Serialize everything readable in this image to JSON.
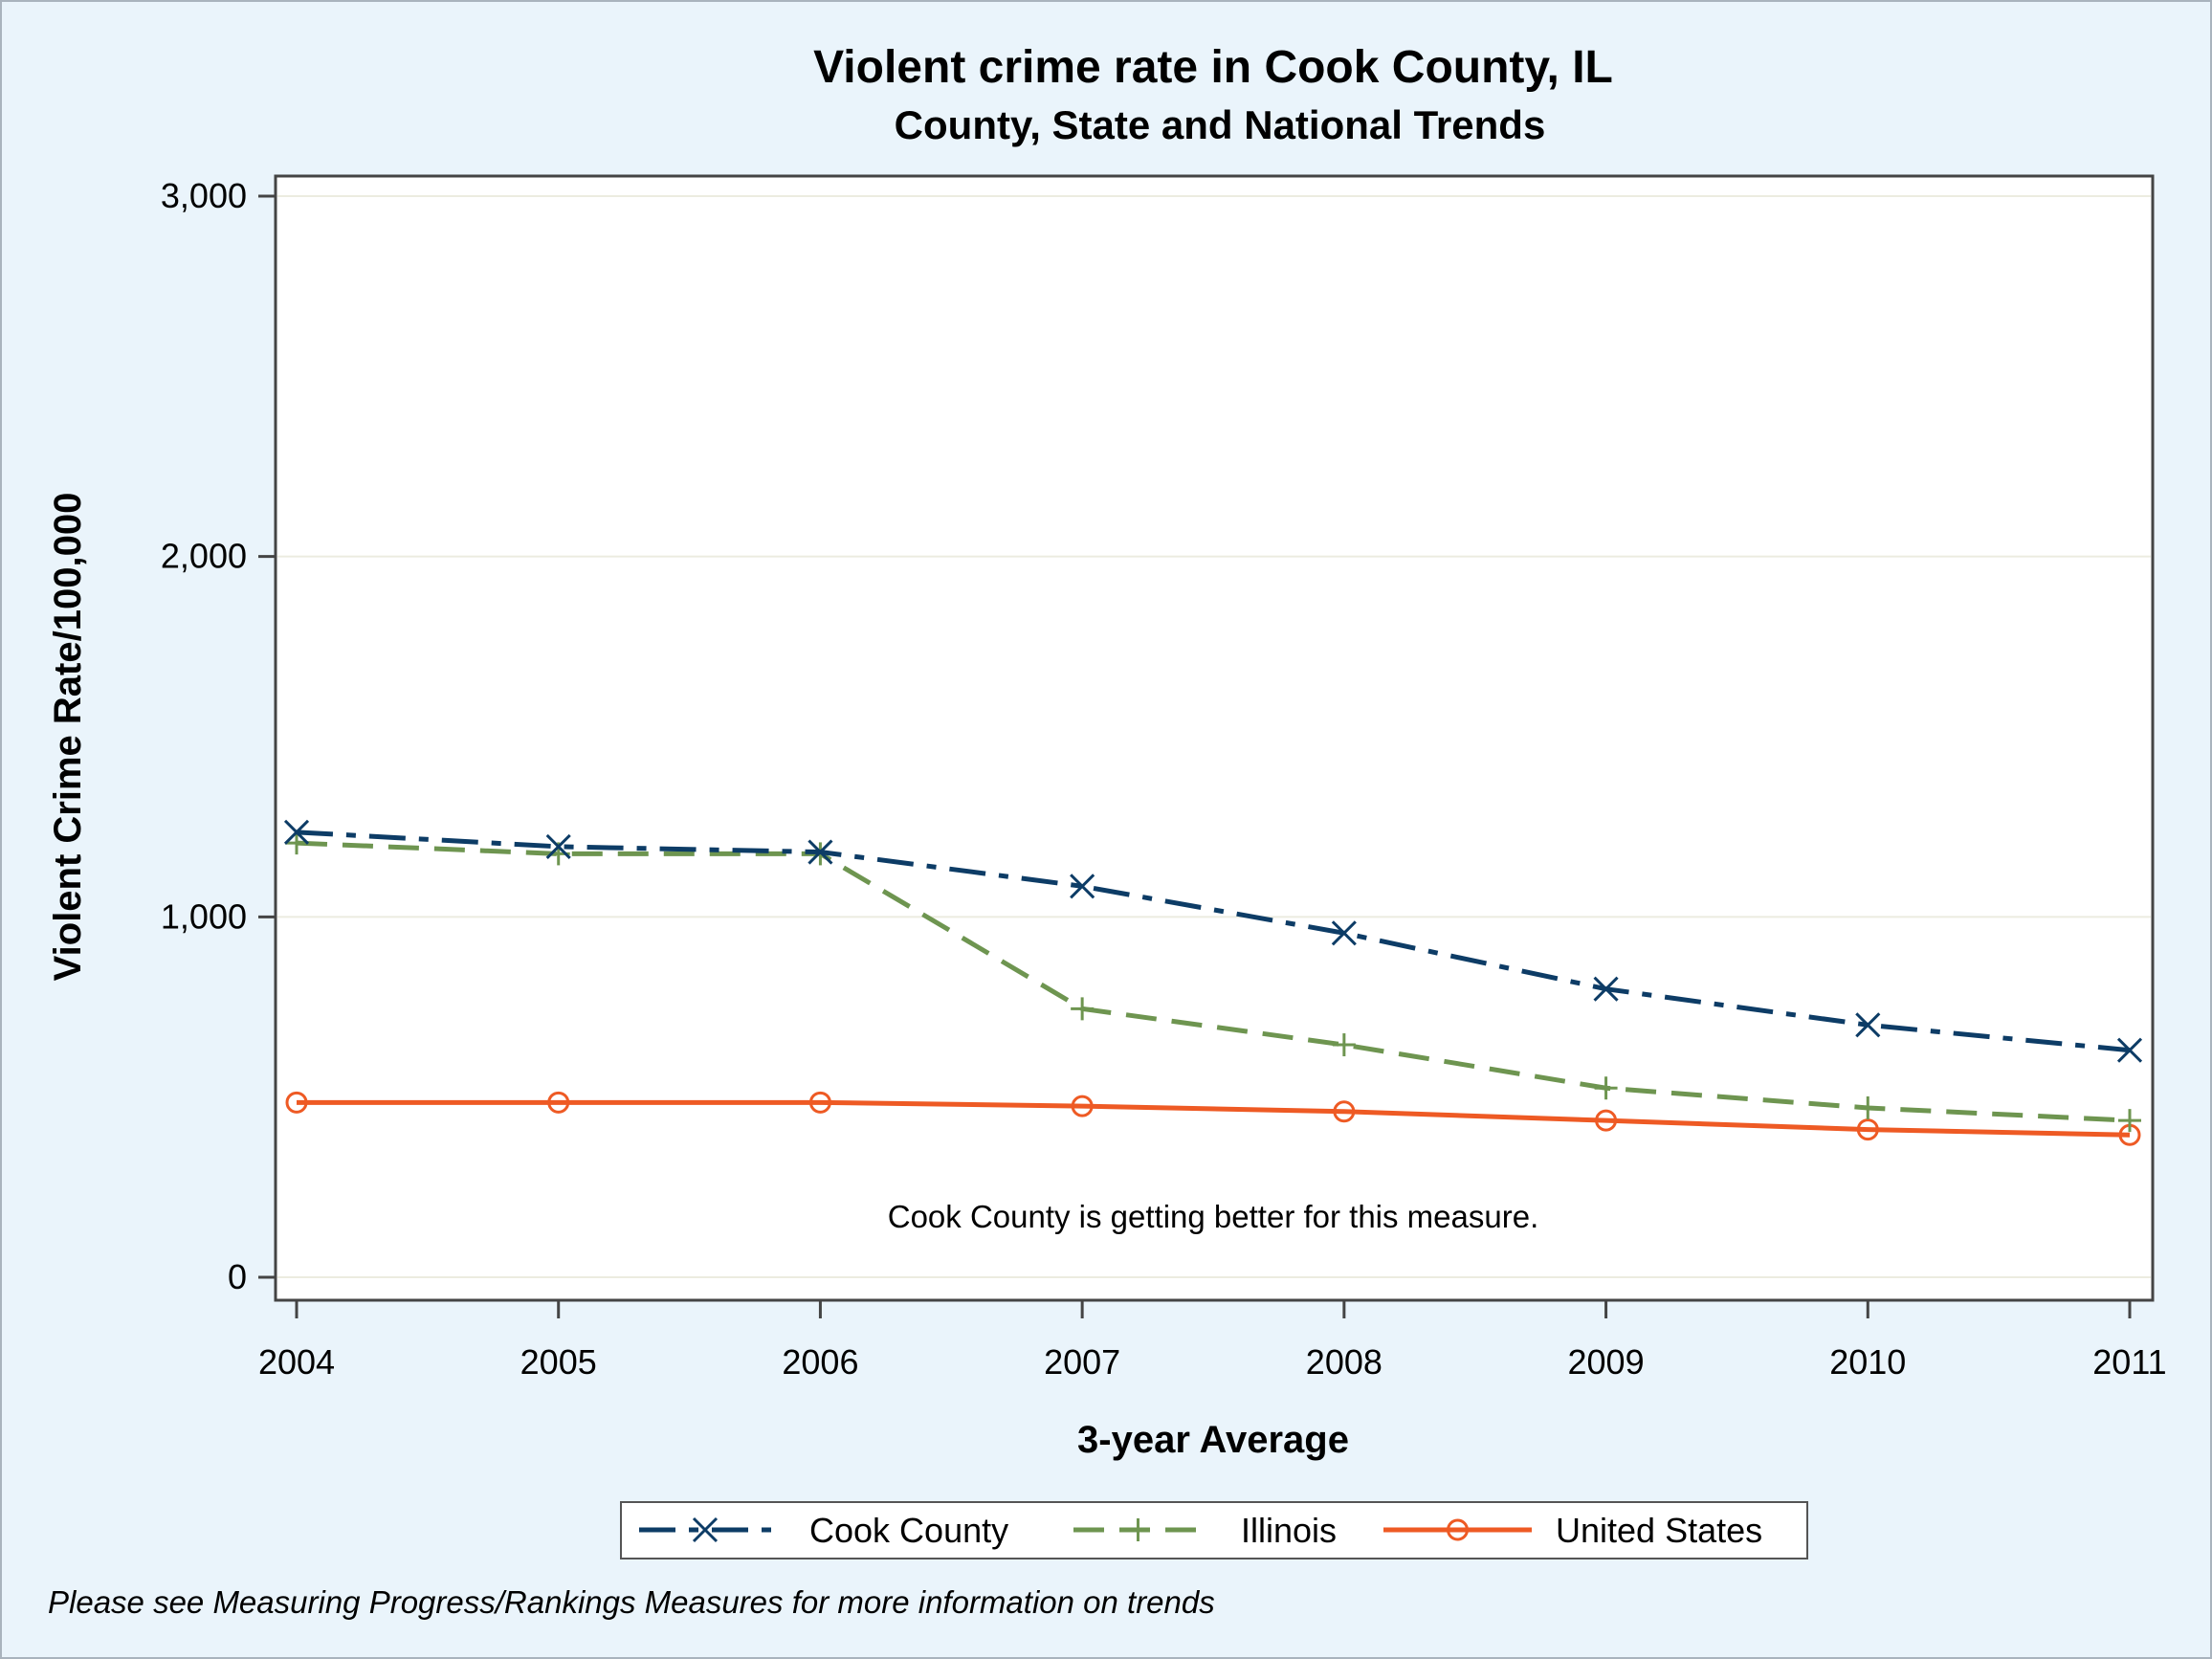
{
  "chart_data": {
    "type": "line",
    "title": "Violent crime rate in Cook County, IL",
    "subtitle": "County, State and National Trends",
    "xlabel": "3-year Average",
    "ylabel": "Violent Crime Rate/100,000",
    "x": [
      "2004",
      "2005",
      "2006",
      "2007",
      "2008",
      "2009",
      "2010",
      "2011"
    ],
    "ylim": [
      0,
      3000
    ],
    "yticks": [
      0,
      1000,
      2000,
      3000
    ],
    "ytick_labels": [
      "0",
      "1,000",
      "2,000",
      "3,000"
    ],
    "grid": true,
    "legend_position": "bottom",
    "series": [
      {
        "name": "Cook County",
        "values": [
          1235,
          1195,
          1180,
          1085,
          955,
          800,
          700,
          630
        ],
        "color": "#0d3c66",
        "marker": "x",
        "dash": "dash-dot"
      },
      {
        "name": "Illinois",
        "values": [
          1205,
          1175,
          1175,
          745,
          645,
          525,
          470,
          435
        ],
        "color": "#6e9550",
        "marker": "plus",
        "dash": "dashed"
      },
      {
        "name": "United States",
        "values": [
          485,
          485,
          485,
          475,
          460,
          435,
          410,
          395
        ],
        "color": "#ee5a24",
        "marker": "circle",
        "dash": "solid"
      }
    ],
    "annotation": "Cook County is getting better for this measure."
  },
  "footnote": "Please see Measuring Progress/Rankings Measures for more information on trends"
}
